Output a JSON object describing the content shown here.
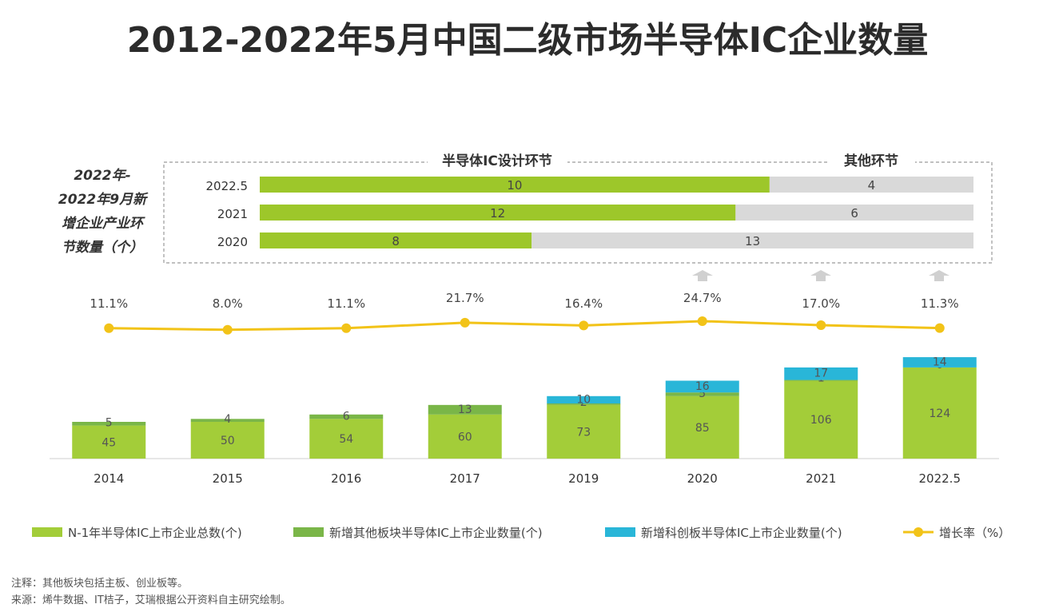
{
  "title": "2012-2022年5月中国二级市场半导体IC企业数量",
  "chart_data": [
    {
      "type": "bar",
      "orientation": "horizontal",
      "stacked": true,
      "side_label": [
        "2022年-",
        "2022年9月新",
        "增企业产业环",
        "节数量（个）"
      ],
      "categories": [
        "2022.5",
        "2021",
        "2020"
      ],
      "series": [
        {
          "name": "半导体IC设计环节",
          "color": "#9dc72a",
          "values": [
            10,
            12,
            8
          ]
        },
        {
          "name": "其他环节",
          "color": "#d9d9d9",
          "values": [
            4,
            6,
            13
          ]
        }
      ]
    },
    {
      "type": "bar",
      "stacked": true,
      "categories": [
        "2014",
        "2015",
        "2016",
        "2017",
        "2019",
        "2020",
        "2021",
        "2022.5"
      ],
      "series": [
        {
          "name": "N-1年半导体IC上市企业总数(个)",
          "color": "#a3cd39",
          "values": [
            45,
            50,
            54,
            60,
            73,
            85,
            106,
            124
          ]
        },
        {
          "name": "新增其他板块半导体IC上市企业数量(个)",
          "color": "#7ab648",
          "values": [
            5,
            4,
            6,
            13,
            2,
            5,
            1,
            0
          ]
        },
        {
          "name": "新增科创板半导体IC上市企业数量(个)",
          "color": "#29b6d8",
          "values": [
            0,
            0,
            0,
            0,
            10,
            16,
            17,
            14
          ]
        }
      ],
      "segment_labels": [
        [
          "45",
          "5",
          ""
        ],
        [
          "50",
          "4",
          ""
        ],
        [
          "54",
          "6",
          ""
        ],
        [
          "60",
          "13",
          ""
        ],
        [
          "73",
          "2",
          "10"
        ],
        [
          "85",
          "5",
          "16"
        ],
        [
          "106",
          "1",
          "17"
        ],
        [
          "124",
          "0",
          "14"
        ]
      ],
      "line": {
        "name": "增长率（%）",
        "color": "#f2c318",
        "values": [
          11.1,
          8.0,
          11.1,
          21.7,
          16.4,
          24.7,
          17.0,
          11.3
        ],
        "labels": [
          "11.1%",
          "8.0%",
          "11.1%",
          "21.7%",
          "16.4%",
          "24.7%",
          "17.0%",
          "11.3%"
        ]
      }
    }
  ],
  "footnotes": {
    "note": "注释：其他板块包括主板、创业板等。",
    "source": "来源：烯牛数据、IT桔子，艾瑞根据公开资料自主研究绘制。"
  }
}
